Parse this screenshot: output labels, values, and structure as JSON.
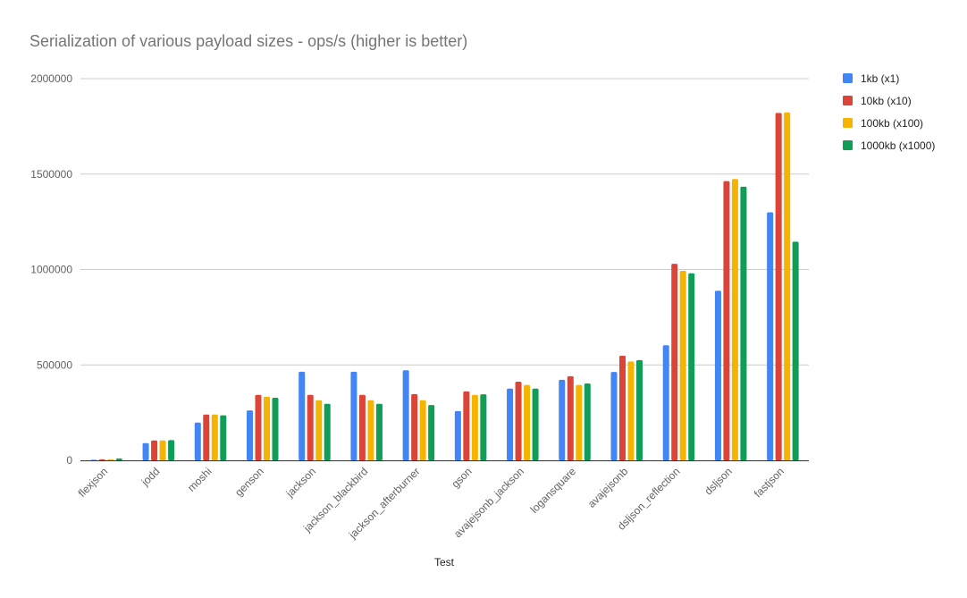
{
  "chart_data": {
    "type": "bar",
    "title": "Serialization of various payload sizes  - ops/s (higher is better)",
    "xlabel": "Test",
    "ylabel": "",
    "ylim": [
      0,
      2000000
    ],
    "yticks": [
      "0",
      "500000",
      "1000000",
      "1500000",
      "2000000"
    ],
    "ytick_values": [
      0,
      500000,
      1000000,
      1500000,
      2000000
    ],
    "grid": true,
    "legend_position": "right",
    "categories": [
      "flexjson",
      "jodd",
      "moshi",
      "genson",
      "jackson",
      "jackson_blackbird",
      "jackson_afterburner",
      "gson",
      "avajejsonb_jackson",
      "logansquare",
      "avajejsonb",
      "dsljson_reflection",
      "dsljson",
      "fastjson"
    ],
    "series": [
      {
        "name": "1kb (x1)",
        "color": "#4285F4",
        "values": [
          3000,
          90000,
          198000,
          262000,
          464000,
          464000,
          472000,
          258000,
          376000,
          422000,
          463000,
          603000,
          889000,
          1300000
        ]
      },
      {
        "name": "10kb (x10)",
        "color": "#DB4437",
        "values": [
          5000,
          104000,
          240000,
          343000,
          343000,
          343000,
          347000,
          361000,
          412000,
          441000,
          548000,
          1030000,
          1463000,
          1820000
        ]
      },
      {
        "name": "100kb (x100)",
        "color": "#F4B400",
        "values": [
          5000,
          104000,
          240000,
          333000,
          315000,
          315000,
          315000,
          343000,
          395000,
          395000,
          518000,
          993000,
          1474000,
          1823000
        ]
      },
      {
        "name": "1000kb (x1000)",
        "color": "#0F9D58",
        "values": [
          10000,
          106000,
          236000,
          328000,
          296000,
          296000,
          290000,
          346000,
          376000,
          403000,
          525000,
          980000,
          1434000,
          1146000
        ]
      }
    ]
  }
}
